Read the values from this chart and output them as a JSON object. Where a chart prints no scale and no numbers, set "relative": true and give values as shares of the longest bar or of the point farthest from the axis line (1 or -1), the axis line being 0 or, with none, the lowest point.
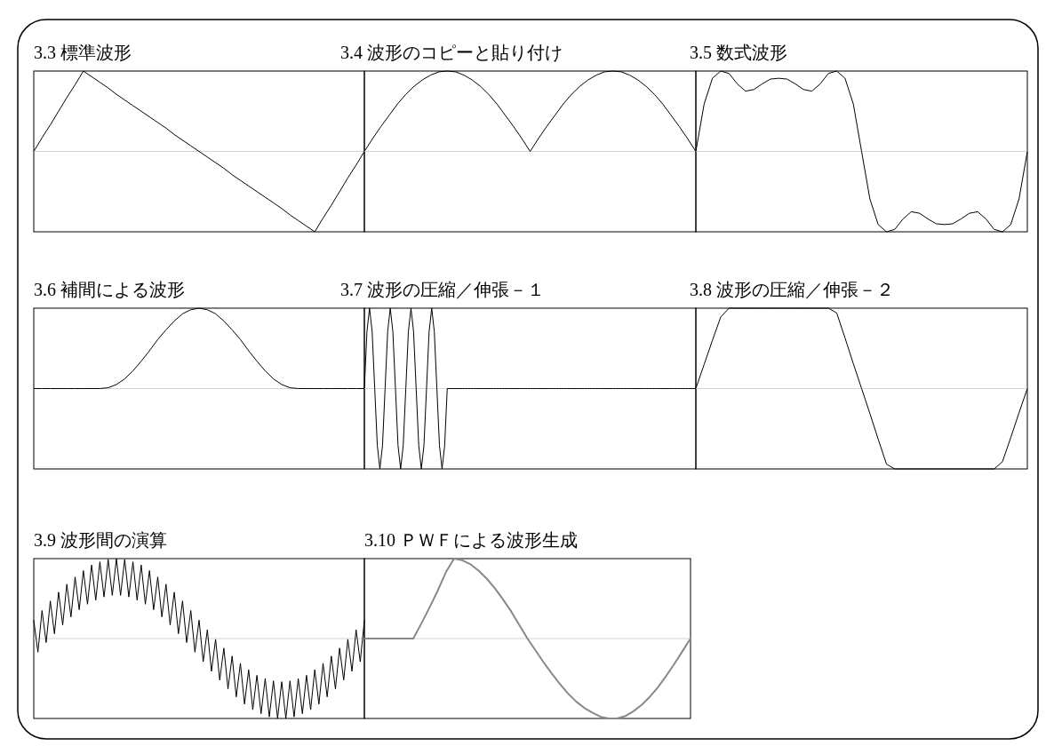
{
  "chart_data": [
    {
      "type": "line",
      "title": "3.3 標準波形",
      "relative": true,
      "color": "#000000",
      "categories": [
        null,
        null,
        null,
        null,
        null,
        null,
        null,
        null,
        null,
        null,
        null,
        null,
        null,
        null,
        null,
        null,
        null,
        null,
        null,
        null,
        null,
        null,
        null,
        null,
        null,
        null,
        null,
        null,
        null,
        null,
        null,
        null,
        null,
        null,
        null,
        null,
        null,
        null,
        null,
        null,
        null
      ],
      "values": [
        0,
        0.17,
        0.33,
        0.5,
        0.67,
        0.83,
        1,
        0.93,
        0.86,
        0.79,
        0.71,
        0.64,
        0.57,
        0.5,
        0.43,
        0.36,
        0.29,
        0.21,
        0.14,
        0.07,
        0,
        -0.07,
        -0.14,
        -0.21,
        -0.29,
        -0.36,
        -0.43,
        -0.5,
        -0.57,
        -0.64,
        -0.71,
        -0.79,
        -0.86,
        -0.93,
        -1,
        -0.83,
        -0.67,
        -0.5,
        -0.33,
        -0.17,
        0
      ]
    },
    {
      "type": "line",
      "title": "3.4 波形のコピーと貼り付け",
      "relative": true,
      "color": "#000000",
      "categories": [
        null,
        null,
        null,
        null,
        null,
        null,
        null,
        null,
        null,
        null,
        null,
        null,
        null,
        null,
        null,
        null,
        null,
        null,
        null,
        null,
        null,
        null,
        null,
        null,
        null,
        null,
        null,
        null,
        null,
        null,
        null,
        null,
        null,
        null,
        null,
        null,
        null,
        null,
        null,
        null,
        null
      ],
      "values": [
        0,
        0.16,
        0.31,
        0.45,
        0.59,
        0.71,
        0.81,
        0.89,
        0.95,
        0.99,
        1,
        0.99,
        0.95,
        0.89,
        0.81,
        0.71,
        0.59,
        0.45,
        0.31,
        0.16,
        0,
        0.16,
        0.31,
        0.45,
        0.59,
        0.71,
        0.81,
        0.89,
        0.95,
        0.99,
        1,
        0.99,
        0.95,
        0.89,
        0.81,
        0.71,
        0.59,
        0.45,
        0.31,
        0.16,
        0
      ]
    },
    {
      "type": "line",
      "title": "3.5 数式波形",
      "relative": true,
      "color": "#000000",
      "categories": [
        null,
        null,
        null,
        null,
        null,
        null,
        null,
        null,
        null,
        null,
        null,
        null,
        null,
        null,
        null,
        null,
        null,
        null,
        null,
        null,
        null,
        null,
        null,
        null,
        null,
        null,
        null,
        null,
        null,
        null,
        null,
        null,
        null,
        null,
        null,
        null,
        null,
        null,
        null,
        null,
        null
      ],
      "values": [
        0,
        0.59,
        0.91,
        1,
        0.97,
        0.84,
        0.75,
        0.77,
        0.84,
        0.9,
        0.91,
        0.9,
        0.84,
        0.77,
        0.75,
        0.84,
        0.97,
        1,
        0.91,
        0.59,
        0,
        -0.59,
        -0.91,
        -1,
        -0.97,
        -0.84,
        -0.75,
        -0.77,
        -0.84,
        -0.9,
        -0.91,
        -0.9,
        -0.84,
        -0.77,
        -0.75,
        -0.84,
        -0.97,
        -1,
        -0.91,
        -0.59,
        0
      ]
    },
    {
      "type": "line",
      "title": "3.6 補間による波形",
      "relative": true,
      "color": "#000000",
      "categories": [
        null,
        null,
        null,
        null,
        null,
        null,
        null,
        null,
        null,
        null,
        null,
        null,
        null,
        null,
        null,
        null,
        null,
        null,
        null,
        null,
        null,
        null,
        null,
        null,
        null,
        null,
        null,
        null,
        null,
        null,
        null,
        null,
        null,
        null,
        null,
        null,
        null,
        null,
        null,
        null,
        null
      ],
      "values": [
        0,
        0,
        0,
        0,
        0,
        0,
        0,
        0,
        0,
        0.01,
        0.05,
        0.12,
        0.22,
        0.34,
        0.47,
        0.61,
        0.73,
        0.84,
        0.93,
        0.98,
        1,
        0.98,
        0.93,
        0.84,
        0.73,
        0.61,
        0.47,
        0.34,
        0.22,
        0.12,
        0.05,
        0.01,
        0,
        0,
        0,
        0,
        0,
        0,
        0,
        0,
        0
      ]
    },
    {
      "type": "line",
      "title": "3.7 波形の圧縮／伸張－１",
      "relative": true,
      "color": "#000000",
      "categories": [
        null,
        null,
        null,
        null,
        null,
        null,
        null,
        null,
        null,
        null,
        null,
        null,
        null,
        null,
        null,
        null,
        null,
        null,
        null,
        null,
        null,
        null,
        null,
        null,
        null,
        null,
        null,
        null,
        null,
        null,
        null,
        null,
        null,
        null,
        null,
        null,
        null,
        null,
        null,
        null,
        null,
        null,
        null,
        null,
        null,
        null,
        null,
        null,
        null,
        null,
        null,
        null,
        null,
        null,
        null,
        null,
        null,
        null,
        null,
        null,
        null,
        null,
        null,
        null,
        null,
        null,
        null,
        null,
        null,
        null,
        null,
        null,
        null,
        null,
        null,
        null,
        null,
        null,
        null,
        null,
        null,
        null,
        null,
        null,
        null,
        null,
        null,
        null,
        null,
        null,
        null,
        null,
        null,
        null,
        null,
        null,
        null,
        null,
        null,
        null,
        null,
        null,
        null,
        null,
        null,
        null,
        null,
        null,
        null,
        null,
        null,
        null,
        null,
        null,
        null,
        null,
        null,
        null,
        null,
        null,
        null,
        null,
        null,
        null,
        null,
        null,
        null,
        null,
        null
      ],
      "values": [
        0,
        0.71,
        1,
        0.71,
        0,
        -0.71,
        -1,
        -0.71,
        0,
        0.71,
        1,
        0.71,
        0,
        -0.71,
        -1,
        -0.71,
        0,
        0.71,
        1,
        0.71,
        0,
        -0.71,
        -1,
        -0.71,
        0,
        0.71,
        1,
        0.71,
        0,
        -0.71,
        -1,
        -0.71,
        0,
        0,
        0,
        0,
        0,
        0,
        0,
        0,
        0,
        0,
        0,
        0,
        0,
        0,
        0,
        0,
        0,
        0,
        0,
        0,
        0,
        0,
        0,
        0,
        0,
        0,
        0,
        0,
        0,
        0,
        0,
        0,
        0,
        0,
        0,
        0,
        0,
        0,
        0,
        0,
        0,
        0,
        0,
        0,
        0,
        0,
        0,
        0,
        0,
        0,
        0,
        0,
        0,
        0,
        0,
        0,
        0,
        0,
        0,
        0,
        0,
        0,
        0,
        0,
        0,
        0,
        0,
        0,
        0,
        0,
        0,
        0,
        0,
        0,
        0,
        0,
        0,
        0,
        0,
        0,
        0,
        0,
        0,
        0,
        0,
        0,
        0,
        0,
        0,
        0,
        0,
        0,
        0,
        0,
        0,
        0,
        0
      ]
    },
    {
      "type": "line",
      "title": "3.8 波形の圧縮／伸張－２",
      "relative": true,
      "color": "#000000",
      "categories": [
        null,
        null,
        null,
        null,
        null,
        null,
        null,
        null,
        null,
        null,
        null,
        null,
        null,
        null,
        null,
        null,
        null,
        null,
        null,
        null,
        null,
        null,
        null,
        null,
        null,
        null,
        null,
        null,
        null,
        null,
        null,
        null,
        null,
        null,
        null,
        null,
        null,
        null,
        null,
        null,
        null
      ],
      "values": [
        0,
        0.3,
        0.6,
        0.89,
        1,
        1,
        1,
        1,
        1,
        1,
        1,
        1,
        1,
        1,
        1,
        1,
        1,
        0.94,
        0.63,
        0.31,
        0,
        -0.31,
        -0.63,
        -0.94,
        -1,
        -1,
        -1,
        -1,
        -1,
        -1,
        -1,
        -1,
        -1,
        -1,
        -1,
        -1,
        -1,
        -0.91,
        -0.61,
        -0.3,
        0
      ]
    },
    {
      "type": "line",
      "title": "3.9 波形間の演算",
      "relative": true,
      "color": "#000000",
      "categories": [
        null,
        null,
        null,
        null,
        null,
        null,
        null,
        null,
        null,
        null,
        null,
        null,
        null,
        null,
        null,
        null,
        null,
        null,
        null,
        null,
        null,
        null,
        null,
        null,
        null,
        null,
        null,
        null,
        null,
        null,
        null,
        null,
        null,
        null,
        null,
        null,
        null,
        null,
        null,
        null,
        null,
        null,
        null,
        null,
        null,
        null,
        null,
        null,
        null,
        null,
        null,
        null,
        null,
        null,
        null,
        null,
        null,
        null,
        null,
        null,
        null,
        null,
        null,
        null,
        null,
        null,
        null,
        null,
        null,
        null,
        null,
        null,
        null,
        null,
        null,
        null,
        null,
        null,
        null,
        null,
        null
      ],
      "values": [
        0.23,
        -0.17,
        0.35,
        -0.05,
        0.47,
        0.06,
        0.58,
        0.17,
        0.68,
        0.27,
        0.77,
        0.36,
        0.85,
        0.43,
        0.92,
        0.48,
        0.96,
        0.52,
        0.99,
        0.54,
        1,
        0.54,
        0.99,
        0.52,
        0.96,
        0.48,
        0.92,
        0.43,
        0.85,
        0.36,
        0.77,
        0.27,
        0.68,
        0.17,
        0.58,
        0.06,
        0.47,
        -0.05,
        0.35,
        -0.17,
        0.23,
        -0.29,
        0.11,
        -0.41,
        -0.01,
        -0.52,
        -0.12,
        -0.63,
        -0.22,
        -0.73,
        -0.31,
        -0.82,
        -0.39,
        -0.89,
        -0.46,
        -0.94,
        -0.5,
        -0.98,
        -0.53,
        -1,
        -0.54,
        -1,
        -0.53,
        -0.98,
        -0.5,
        -0.94,
        -0.46,
        -0.89,
        -0.39,
        -0.82,
        -0.31,
        -0.73,
        -0.22,
        -0.63,
        -0.12,
        -0.52,
        -0.01,
        -0.41,
        0.11,
        -0.29,
        0.23
      ]
    },
    {
      "type": "line",
      "title": "3.10 ＰＷＦによる波形生成",
      "relative": true,
      "color": "#888888",
      "categories": [
        null,
        null,
        null,
        null,
        null,
        null,
        null,
        null,
        null,
        null,
        null,
        null,
        null,
        null,
        null,
        null,
        null,
        null,
        null,
        null,
        null,
        null,
        null,
        null,
        null,
        null,
        null,
        null,
        null,
        null,
        null,
        null,
        null,
        null,
        null,
        null,
        null,
        null,
        null,
        null,
        null
      ],
      "values": [
        0,
        0,
        0,
        0,
        0,
        0,
        0,
        0.19,
        0.39,
        0.6,
        0.83,
        1,
        0.98,
        0.93,
        0.85,
        0.75,
        0.63,
        0.49,
        0.34,
        0.17,
        0,
        -0.15,
        -0.3,
        -0.44,
        -0.57,
        -0.69,
        -0.79,
        -0.87,
        -0.93,
        -0.98,
        -1,
        -1,
        -0.97,
        -0.91,
        -0.83,
        -0.73,
        -0.61,
        -0.47,
        -0.32,
        -0.16,
        0
      ]
    }
  ]
}
